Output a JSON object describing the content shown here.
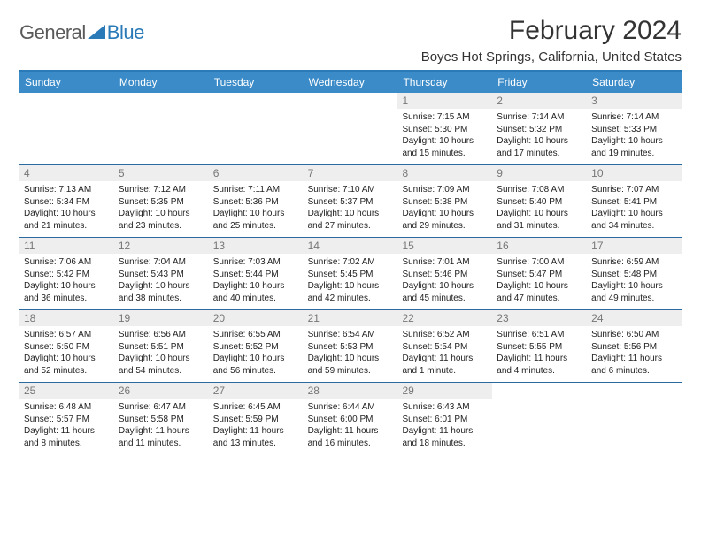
{
  "logo": {
    "text1": "General",
    "text2": "Blue"
  },
  "title": "February 2024",
  "location": "Boyes Hot Springs, California, United States",
  "dayHeaders": [
    "Sunday",
    "Monday",
    "Tuesday",
    "Wednesday",
    "Thursday",
    "Friday",
    "Saturday"
  ],
  "colors": {
    "headerBg": "#3b8bc8",
    "headerBorder": "#2a7ab8",
    "rowBorder": "#2a6aa0",
    "dayNumBg": "#eeeeee",
    "logoBlue": "#2a7ab8"
  },
  "weeks": [
    [
      {
        "day": "",
        "lines": []
      },
      {
        "day": "",
        "lines": []
      },
      {
        "day": "",
        "lines": []
      },
      {
        "day": "",
        "lines": []
      },
      {
        "day": "1",
        "lines": [
          "Sunrise: 7:15 AM",
          "Sunset: 5:30 PM",
          "Daylight: 10 hours and 15 minutes."
        ]
      },
      {
        "day": "2",
        "lines": [
          "Sunrise: 7:14 AM",
          "Sunset: 5:32 PM",
          "Daylight: 10 hours and 17 minutes."
        ]
      },
      {
        "day": "3",
        "lines": [
          "Sunrise: 7:14 AM",
          "Sunset: 5:33 PM",
          "Daylight: 10 hours and 19 minutes."
        ]
      }
    ],
    [
      {
        "day": "4",
        "lines": [
          "Sunrise: 7:13 AM",
          "Sunset: 5:34 PM",
          "Daylight: 10 hours and 21 minutes."
        ]
      },
      {
        "day": "5",
        "lines": [
          "Sunrise: 7:12 AM",
          "Sunset: 5:35 PM",
          "Daylight: 10 hours and 23 minutes."
        ]
      },
      {
        "day": "6",
        "lines": [
          "Sunrise: 7:11 AM",
          "Sunset: 5:36 PM",
          "Daylight: 10 hours and 25 minutes."
        ]
      },
      {
        "day": "7",
        "lines": [
          "Sunrise: 7:10 AM",
          "Sunset: 5:37 PM",
          "Daylight: 10 hours and 27 minutes."
        ]
      },
      {
        "day": "8",
        "lines": [
          "Sunrise: 7:09 AM",
          "Sunset: 5:38 PM",
          "Daylight: 10 hours and 29 minutes."
        ]
      },
      {
        "day": "9",
        "lines": [
          "Sunrise: 7:08 AM",
          "Sunset: 5:40 PM",
          "Daylight: 10 hours and 31 minutes."
        ]
      },
      {
        "day": "10",
        "lines": [
          "Sunrise: 7:07 AM",
          "Sunset: 5:41 PM",
          "Daylight: 10 hours and 34 minutes."
        ]
      }
    ],
    [
      {
        "day": "11",
        "lines": [
          "Sunrise: 7:06 AM",
          "Sunset: 5:42 PM",
          "Daylight: 10 hours and 36 minutes."
        ]
      },
      {
        "day": "12",
        "lines": [
          "Sunrise: 7:04 AM",
          "Sunset: 5:43 PM",
          "Daylight: 10 hours and 38 minutes."
        ]
      },
      {
        "day": "13",
        "lines": [
          "Sunrise: 7:03 AM",
          "Sunset: 5:44 PM",
          "Daylight: 10 hours and 40 minutes."
        ]
      },
      {
        "day": "14",
        "lines": [
          "Sunrise: 7:02 AM",
          "Sunset: 5:45 PM",
          "Daylight: 10 hours and 42 minutes."
        ]
      },
      {
        "day": "15",
        "lines": [
          "Sunrise: 7:01 AM",
          "Sunset: 5:46 PM",
          "Daylight: 10 hours and 45 minutes."
        ]
      },
      {
        "day": "16",
        "lines": [
          "Sunrise: 7:00 AM",
          "Sunset: 5:47 PM",
          "Daylight: 10 hours and 47 minutes."
        ]
      },
      {
        "day": "17",
        "lines": [
          "Sunrise: 6:59 AM",
          "Sunset: 5:48 PM",
          "Daylight: 10 hours and 49 minutes."
        ]
      }
    ],
    [
      {
        "day": "18",
        "lines": [
          "Sunrise: 6:57 AM",
          "Sunset: 5:50 PM",
          "Daylight: 10 hours and 52 minutes."
        ]
      },
      {
        "day": "19",
        "lines": [
          "Sunrise: 6:56 AM",
          "Sunset: 5:51 PM",
          "Daylight: 10 hours and 54 minutes."
        ]
      },
      {
        "day": "20",
        "lines": [
          "Sunrise: 6:55 AM",
          "Sunset: 5:52 PM",
          "Daylight: 10 hours and 56 minutes."
        ]
      },
      {
        "day": "21",
        "lines": [
          "Sunrise: 6:54 AM",
          "Sunset: 5:53 PM",
          "Daylight: 10 hours and 59 minutes."
        ]
      },
      {
        "day": "22",
        "lines": [
          "Sunrise: 6:52 AM",
          "Sunset: 5:54 PM",
          "Daylight: 11 hours and 1 minute."
        ]
      },
      {
        "day": "23",
        "lines": [
          "Sunrise: 6:51 AM",
          "Sunset: 5:55 PM",
          "Daylight: 11 hours and 4 minutes."
        ]
      },
      {
        "day": "24",
        "lines": [
          "Sunrise: 6:50 AM",
          "Sunset: 5:56 PM",
          "Daylight: 11 hours and 6 minutes."
        ]
      }
    ],
    [
      {
        "day": "25",
        "lines": [
          "Sunrise: 6:48 AM",
          "Sunset: 5:57 PM",
          "Daylight: 11 hours and 8 minutes."
        ]
      },
      {
        "day": "26",
        "lines": [
          "Sunrise: 6:47 AM",
          "Sunset: 5:58 PM",
          "Daylight: 11 hours and 11 minutes."
        ]
      },
      {
        "day": "27",
        "lines": [
          "Sunrise: 6:45 AM",
          "Sunset: 5:59 PM",
          "Daylight: 11 hours and 13 minutes."
        ]
      },
      {
        "day": "28",
        "lines": [
          "Sunrise: 6:44 AM",
          "Sunset: 6:00 PM",
          "Daylight: 11 hours and 16 minutes."
        ]
      },
      {
        "day": "29",
        "lines": [
          "Sunrise: 6:43 AM",
          "Sunset: 6:01 PM",
          "Daylight: 11 hours and 18 minutes."
        ]
      },
      {
        "day": "",
        "lines": []
      },
      {
        "day": "",
        "lines": []
      }
    ]
  ]
}
